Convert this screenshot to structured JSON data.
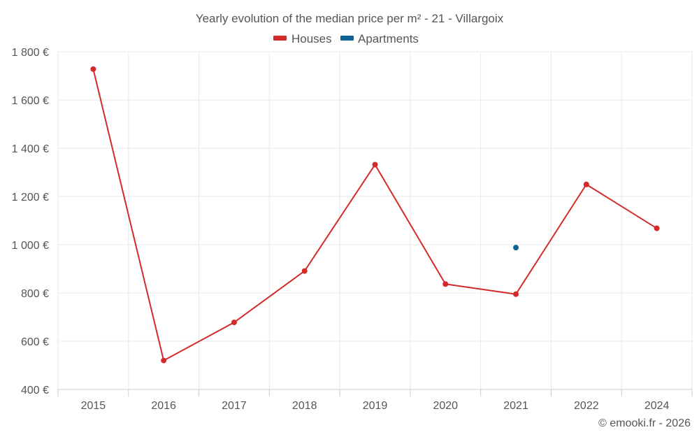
{
  "chart_data": {
    "type": "line",
    "title": "Yearly evolution of the median price per m² - 21 - Villargoix",
    "categories": [
      "2015",
      "2016",
      "2017",
      "2018",
      "2019",
      "2020",
      "2021",
      "2022",
      "2024"
    ],
    "y_ticks": [
      "400 €",
      "600 €",
      "800 €",
      "1 000 €",
      "1 200 €",
      "1 400 €",
      "1 600 €",
      "1 800 €"
    ],
    "ylim": [
      400,
      1800
    ],
    "xlabel": "",
    "ylabel": "",
    "legend_position": "top-center",
    "grid": true,
    "series": [
      {
        "name": "Houses",
        "color": "#d42a2a",
        "values": [
          1728,
          520,
          678,
          891,
          1332,
          837,
          795,
          1250,
          1068
        ]
      },
      {
        "name": "Apartments",
        "color": "#0d6396",
        "values": [
          null,
          null,
          null,
          null,
          null,
          null,
          988,
          null,
          null
        ]
      }
    ]
  },
  "credit": "© emooki.fr - 2026"
}
